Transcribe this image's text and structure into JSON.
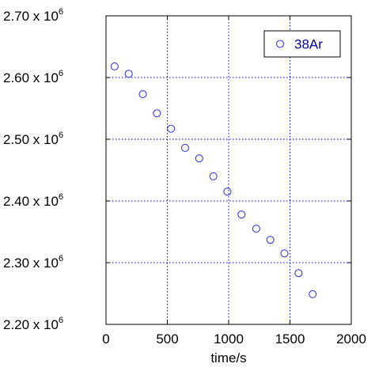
{
  "chart_data": {
    "type": "scatter",
    "title": "",
    "xlabel": "time/s",
    "ylabel": "",
    "xlim": [
      0,
      2000
    ],
    "ylim": [
      2.2,
      2.7
    ],
    "y_multiplier": "x 10",
    "y_exponent": "6",
    "x_ticks": [
      0,
      500,
      1000,
      1500,
      2000
    ],
    "x_tick_labels": [
      "0",
      "500",
      "1000",
      "1500",
      "2000"
    ],
    "y_ticks": [
      2.2,
      2.3,
      2.4,
      2.5,
      2.6,
      2.7
    ],
    "y_tick_labels": [
      "2.20",
      "2.30",
      "2.40",
      "2.50",
      "2.60",
      "2.70"
    ],
    "grid": true,
    "legend_position": "top-right",
    "series": [
      {
        "name": "38Ar",
        "marker": "circle-open",
        "color": "#3b3bd6",
        "x": [
          70,
          185,
          300,
          415,
          530,
          645,
          760,
          875,
          990,
          1105,
          1225,
          1340,
          1455,
          1570,
          1685
        ],
        "y": [
          2.618,
          2.606,
          2.573,
          2.542,
          2.517,
          2.486,
          2.469,
          2.44,
          2.415,
          2.378,
          2.355,
          2.337,
          2.315,
          2.283,
          2.249
        ]
      }
    ]
  }
}
